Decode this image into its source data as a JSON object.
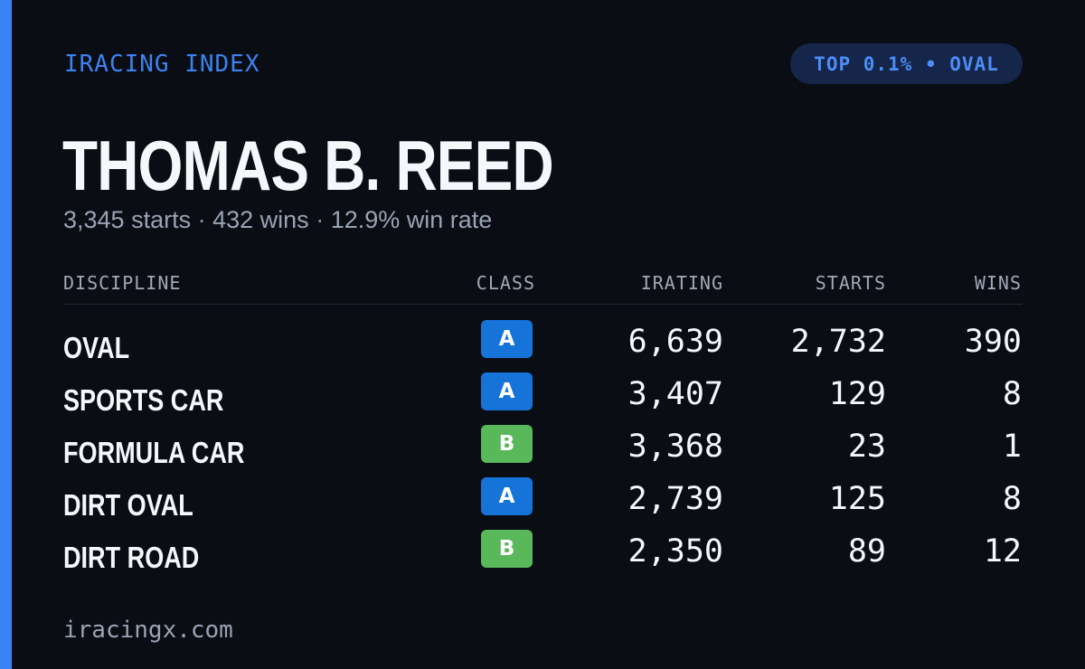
{
  "brand": "IRACING INDEX",
  "badge_top": "TOP 0.1% • OVAL",
  "driver": {
    "name": "THOMAS B. REED",
    "starts": "3,345 starts",
    "wins": "432 wins",
    "win_rate": "12.9% win rate",
    "separator": "·"
  },
  "table": {
    "headers": {
      "discipline": "DISCIPLINE",
      "class": "CLASS",
      "irating": "IRATING",
      "starts": "STARTS",
      "wins": "WINS"
    },
    "rows": [
      {
        "discipline": "OVAL",
        "class": "A",
        "irating": "6,639",
        "starts": "2,732",
        "wins": "390"
      },
      {
        "discipline": "SPORTS CAR",
        "class": "A",
        "irating": "3,407",
        "starts": "129",
        "wins": "8"
      },
      {
        "discipline": "FORMULA CAR",
        "class": "B",
        "irating": "3,368",
        "starts": "23",
        "wins": "1"
      },
      {
        "discipline": "DIRT OVAL",
        "class": "A",
        "irating": "2,739",
        "starts": "125",
        "wins": "8"
      },
      {
        "discipline": "DIRT ROAD",
        "class": "B",
        "irating": "2,350",
        "starts": "89",
        "wins": "12"
      }
    ]
  },
  "footer": "iracingx.com",
  "colors": {
    "background": "#0a0d14",
    "accent": "#3b82f6",
    "class_a": "#1673d8",
    "class_b": "#58b85a"
  }
}
